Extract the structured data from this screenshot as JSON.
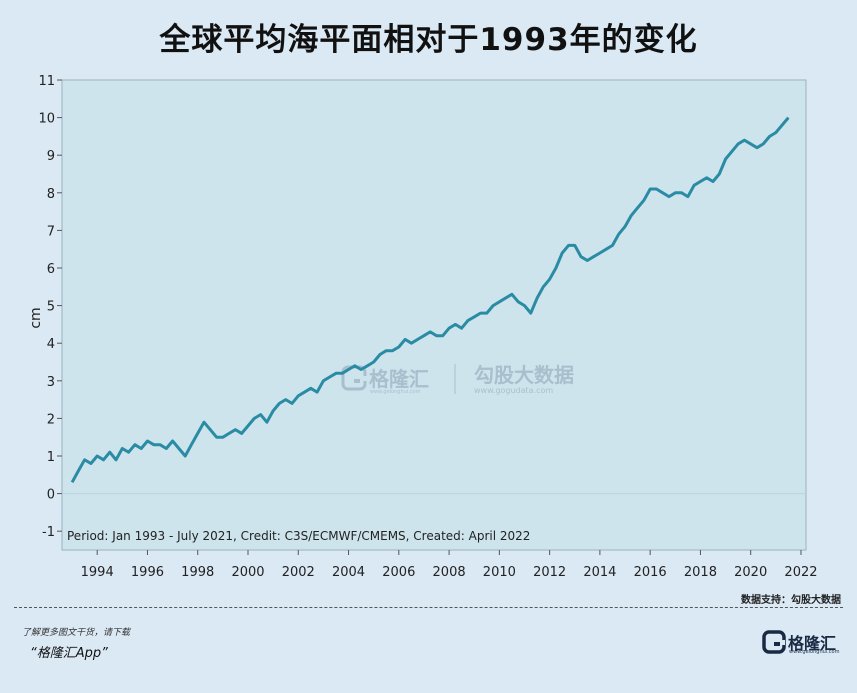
{
  "title": "全球平均海平面相对于1993年的变化",
  "source_label": "数据支持：勾股大数据",
  "promo_text": "了解更多图文干货，请下载",
  "app_text": "“格隆汇App”",
  "logo": {
    "icon": "G-logo-icon",
    "text": "格隆汇",
    "url": "www.gelonghui.com"
  },
  "watermark": {
    "left_icon": "G-logo-icon",
    "left_text": "格隆汇",
    "left_url": "www.gelonghui.com",
    "right_text": "勾股大数据",
    "right_url": "www.gogudata.com"
  },
  "colors": {
    "background": "#dbe9f5",
    "plot_background": "#cde4ec",
    "line": "#2a8ba4"
  },
  "chart_data": {
    "type": "line",
    "title": "全球平均海平面相对于1993年的变化",
    "xlabel": "",
    "ylabel": "cm",
    "xlim": [
      1992.6,
      2022.2
    ],
    "ylim": [
      -1.5,
      11
    ],
    "x_ticks": [
      "1994",
      "1996",
      "1998",
      "2000",
      "2002",
      "2004",
      "2006",
      "2008",
      "2010",
      "2012",
      "2014",
      "2016",
      "2018",
      "2020",
      "2022"
    ],
    "y_ticks": [
      "-1",
      "0",
      "1",
      "2",
      "3",
      "4",
      "5",
      "6",
      "7",
      "8",
      "9",
      "10",
      "11"
    ],
    "zero_line": true,
    "grid": false,
    "annotation": "Period: Jan 1993 - July 2021, Credit: C3S/ECMWF/CMEMS, Created: April 2022",
    "series": [
      {
        "name": "",
        "x": [
          1993.0,
          1993.25,
          1993.5,
          1993.75,
          1994.0,
          1994.25,
          1994.5,
          1994.75,
          1995.0,
          1995.25,
          1995.5,
          1995.75,
          1996.0,
          1996.25,
          1996.5,
          1996.75,
          1997.0,
          1997.25,
          1997.5,
          1997.75,
          1998.0,
          1998.25,
          1998.5,
          1998.75,
          1999.0,
          1999.25,
          1999.5,
          1999.75,
          2000.0,
          2000.25,
          2000.5,
          2000.75,
          2001.0,
          2001.25,
          2001.5,
          2001.75,
          2002.0,
          2002.25,
          2002.5,
          2002.75,
          2003.0,
          2003.25,
          2003.5,
          2003.75,
          2004.0,
          2004.25,
          2004.5,
          2004.75,
          2005.0,
          2005.25,
          2005.5,
          2005.75,
          2006.0,
          2006.25,
          2006.5,
          2006.75,
          2007.0,
          2007.25,
          2007.5,
          2007.75,
          2008.0,
          2008.25,
          2008.5,
          2008.75,
          2009.0,
          2009.25,
          2009.5,
          2009.75,
          2010.0,
          2010.25,
          2010.5,
          2010.75,
          2011.0,
          2011.25,
          2011.5,
          2011.75,
          2012.0,
          2012.25,
          2012.5,
          2012.75,
          2013.0,
          2013.25,
          2013.5,
          2013.75,
          2014.0,
          2014.25,
          2014.5,
          2014.75,
          2015.0,
          2015.25,
          2015.5,
          2015.75,
          2016.0,
          2016.25,
          2016.5,
          2016.75,
          2017.0,
          2017.25,
          2017.5,
          2017.75,
          2018.0,
          2018.25,
          2018.5,
          2018.75,
          2019.0,
          2019.25,
          2019.5,
          2019.75,
          2020.0,
          2020.25,
          2020.5,
          2020.75,
          2021.0,
          2021.25,
          2021.5
        ],
        "values": [
          0.3,
          0.6,
          0.9,
          0.8,
          1.0,
          0.9,
          1.1,
          0.9,
          1.2,
          1.1,
          1.3,
          1.2,
          1.4,
          1.3,
          1.3,
          1.2,
          1.4,
          1.2,
          1.0,
          1.3,
          1.6,
          1.9,
          1.7,
          1.5,
          1.5,
          1.6,
          1.7,
          1.6,
          1.8,
          2.0,
          2.1,
          1.9,
          2.2,
          2.4,
          2.5,
          2.4,
          2.6,
          2.7,
          2.8,
          2.7,
          3.0,
          3.1,
          3.2,
          3.2,
          3.3,
          3.4,
          3.3,
          3.4,
          3.5,
          3.7,
          3.8,
          3.8,
          3.9,
          4.1,
          4.0,
          4.1,
          4.2,
          4.3,
          4.2,
          4.2,
          4.4,
          4.5,
          4.4,
          4.6,
          4.7,
          4.8,
          4.8,
          5.0,
          5.1,
          5.2,
          5.3,
          5.1,
          5.0,
          4.8,
          5.2,
          5.5,
          5.7,
          6.0,
          6.4,
          6.6,
          6.6,
          6.3,
          6.2,
          6.3,
          6.4,
          6.5,
          6.6,
          6.9,
          7.1,
          7.4,
          7.6,
          7.8,
          8.1,
          8.1,
          8.0,
          7.9,
          8.0,
          8.0,
          7.9,
          8.2,
          8.3,
          8.4,
          8.3,
          8.5,
          8.9,
          9.1,
          9.3,
          9.4,
          9.3,
          9.2,
          9.3,
          9.5,
          9.6,
          9.8,
          10.0
        ]
      }
    ]
  }
}
